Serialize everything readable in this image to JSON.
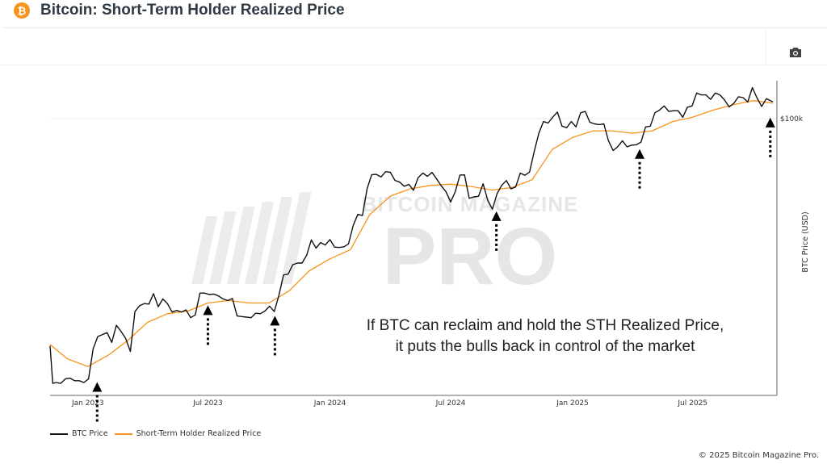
{
  "header": {
    "title": "Bitcoin: Short-Term Holder Realized Price",
    "logo_icon": "bitcoin-icon"
  },
  "toolbar": {
    "camera_icon": "camera-icon"
  },
  "footer": {
    "copyright": "© 2025 Bitcoin Magazine Pro."
  },
  "watermark": "BITCOIN MAGAZINE PRO",
  "colors": {
    "btc": "#111111",
    "sth": "#f7931a",
    "accent": "#f7931a"
  },
  "chart_data": {
    "type": "line",
    "title": "Bitcoin: Short-Term Holder Realized Price",
    "ylabel": "BTC Price (USD)",
    "yscale": "log",
    "ylim": [
      15200,
      139000
    ],
    "xlim": [
      "2022-11-05",
      "2025-11-05"
    ],
    "y_ticks": [
      {
        "value": 100000,
        "label": "$100k"
      }
    ],
    "x_ticks": [
      {
        "date": "2023-01-01",
        "label": "Jan 2023"
      },
      {
        "date": "2023-07-01",
        "label": "Jul 2023"
      },
      {
        "date": "2024-01-01",
        "label": "Jan 2024"
      },
      {
        "date": "2024-07-01",
        "label": "Jul 2024"
      },
      {
        "date": "2025-01-01",
        "label": "Jan 2025"
      },
      {
        "date": "2025-07-01",
        "label": "Jul 2025"
      }
    ],
    "grid": "y only",
    "legend_position": "bottom-left",
    "annotation": [
      "If BTC can reclaim and hold the STH Realized Price,",
      "it puts the bulls back in control of the market"
    ],
    "arrows": [
      {
        "date": "2023-01-15",
        "value": 17200
      },
      {
        "date": "2023-07-01",
        "value": 29000
      },
      {
        "date": "2023-10-10",
        "value": 27000
      },
      {
        "date": "2024-09-08",
        "value": 55000
      },
      {
        "date": "2025-04-12",
        "value": 84000
      },
      {
        "date": "2025-10-26",
        "value": 104000
      }
    ],
    "series": [
      {
        "name": "BTC Price",
        "color": "#111111",
        "points": [
          [
            "2022-11-05",
            21300
          ],
          [
            "2022-11-09",
            16500
          ],
          [
            "2022-11-14",
            16600
          ],
          [
            "2022-11-21",
            16500
          ],
          [
            "2022-11-28",
            17000
          ],
          [
            "2022-12-05",
            17100
          ],
          [
            "2022-12-12",
            16800
          ],
          [
            "2022-12-19",
            16800
          ],
          [
            "2022-12-26",
            16600
          ],
          [
            "2023-01-02",
            17000
          ],
          [
            "2023-01-09",
            20900
          ],
          [
            "2023-01-16",
            22700
          ],
          [
            "2023-01-23",
            23000
          ],
          [
            "2023-01-30",
            23300
          ],
          [
            "2023-02-06",
            21800
          ],
          [
            "2023-02-13",
            24500
          ],
          [
            "2023-02-20",
            23500
          ],
          [
            "2023-02-27",
            22400
          ],
          [
            "2023-03-06",
            20500
          ],
          [
            "2023-03-13",
            26900
          ],
          [
            "2023-03-20",
            28000
          ],
          [
            "2023-03-27",
            28400
          ],
          [
            "2023-04-03",
            28300
          ],
          [
            "2023-04-10",
            30400
          ],
          [
            "2023-04-17",
            27800
          ],
          [
            "2023-04-24",
            29300
          ],
          [
            "2023-05-01",
            28400
          ],
          [
            "2023-05-08",
            26800
          ],
          [
            "2023-05-15",
            27100
          ],
          [
            "2023-05-22",
            26800
          ],
          [
            "2023-05-29",
            27200
          ],
          [
            "2023-06-05",
            25800
          ],
          [
            "2023-06-12",
            26300
          ],
          [
            "2023-06-19",
            30500
          ],
          [
            "2023-06-26",
            30500
          ],
          [
            "2023-07-03",
            30200
          ],
          [
            "2023-07-10",
            30300
          ],
          [
            "2023-07-17",
            29900
          ],
          [
            "2023-07-24",
            29300
          ],
          [
            "2023-07-31",
            29000
          ],
          [
            "2023-08-07",
            29400
          ],
          [
            "2023-08-14",
            26100
          ],
          [
            "2023-08-21",
            26000
          ],
          [
            "2023-08-28",
            25900
          ],
          [
            "2023-09-04",
            25800
          ],
          [
            "2023-09-11",
            26600
          ],
          [
            "2023-09-18",
            26500
          ],
          [
            "2023-09-25",
            27000
          ],
          [
            "2023-10-02",
            27900
          ],
          [
            "2023-10-09",
            26900
          ],
          [
            "2023-10-16",
            30000
          ],
          [
            "2023-10-23",
            34500
          ],
          [
            "2023-10-30",
            34700
          ],
          [
            "2023-11-06",
            37000
          ],
          [
            "2023-11-13",
            37400
          ],
          [
            "2023-11-20",
            37400
          ],
          [
            "2023-11-27",
            39500
          ],
          [
            "2023-12-04",
            43800
          ],
          [
            "2023-12-11",
            41400
          ],
          [
            "2023-12-18",
            43000
          ],
          [
            "2023-12-25",
            42300
          ],
          [
            "2024-01-01",
            43900
          ],
          [
            "2024-01-08",
            41700
          ],
          [
            "2024-01-15",
            41600
          ],
          [
            "2024-01-22",
            41800
          ],
          [
            "2024-01-29",
            42600
          ],
          [
            "2024-02-05",
            48300
          ],
          [
            "2024-02-12",
            52100
          ],
          [
            "2024-02-19",
            51700
          ],
          [
            "2024-02-26",
            62000
          ],
          [
            "2024-03-04",
            68300
          ],
          [
            "2024-03-11",
            68400
          ],
          [
            "2024-03-18",
            67200
          ],
          [
            "2024-03-25",
            69700
          ],
          [
            "2024-04-01",
            69400
          ],
          [
            "2024-04-08",
            65700
          ],
          [
            "2024-04-15",
            64900
          ],
          [
            "2024-04-22",
            63100
          ],
          [
            "2024-04-29",
            63900
          ],
          [
            "2024-05-06",
            61400
          ],
          [
            "2024-05-13",
            66900
          ],
          [
            "2024-05-20",
            69000
          ],
          [
            "2024-05-27",
            67500
          ],
          [
            "2024-06-03",
            69300
          ],
          [
            "2024-06-10",
            66300
          ],
          [
            "2024-06-17",
            63200
          ],
          [
            "2024-06-24",
            60800
          ],
          [
            "2024-07-01",
            56700
          ],
          [
            "2024-07-08",
            60800
          ],
          [
            "2024-07-15",
            68100
          ],
          [
            "2024-07-22",
            68200
          ],
          [
            "2024-07-29",
            58100
          ],
          [
            "2024-08-05",
            58700
          ],
          [
            "2024-08-12",
            58900
          ],
          [
            "2024-08-19",
            64200
          ],
          [
            "2024-08-26",
            57300
          ],
          [
            "2024-09-02",
            54000
          ],
          [
            "2024-09-09",
            60000
          ],
          [
            "2024-09-16",
            63500
          ],
          [
            "2024-09-23",
            65600
          ],
          [
            "2024-09-30",
            62000
          ],
          [
            "2024-10-07",
            62800
          ],
          [
            "2024-10-14",
            69000
          ],
          [
            "2024-10-21",
            68000
          ],
          [
            "2024-10-28",
            69500
          ],
          [
            "2024-11-04",
            80000
          ],
          [
            "2024-11-11",
            90500
          ],
          [
            "2024-11-18",
            98000
          ],
          [
            "2024-11-25",
            97000
          ],
          [
            "2024-12-02",
            101000
          ],
          [
            "2024-12-09",
            104500
          ],
          [
            "2024-12-16",
            95000
          ],
          [
            "2024-12-23",
            94000
          ],
          [
            "2024-12-30",
            98000
          ],
          [
            "2025-01-06",
            94500
          ],
          [
            "2025-01-13",
            104000
          ],
          [
            "2025-01-20",
            105000
          ],
          [
            "2025-01-27",
            97500
          ],
          [
            "2025-02-03",
            96500
          ],
          [
            "2025-02-10",
            96000
          ],
          [
            "2025-02-17",
            96500
          ],
          [
            "2025-02-24",
            86000
          ],
          [
            "2025-03-03",
            80500
          ],
          [
            "2025-03-10",
            82600
          ],
          [
            "2025-03-17",
            86000
          ],
          [
            "2025-03-24",
            82500
          ],
          [
            "2025-03-31",
            83500
          ],
          [
            "2025-04-07",
            83700
          ],
          [
            "2025-04-14",
            85200
          ],
          [
            "2025-04-21",
            94500
          ],
          [
            "2025-04-28",
            95000
          ],
          [
            "2025-05-05",
            104000
          ],
          [
            "2025-05-12",
            106000
          ],
          [
            "2025-05-19",
            109000
          ],
          [
            "2025-05-26",
            105000
          ],
          [
            "2025-06-02",
            105500
          ],
          [
            "2025-06-09",
            105500
          ],
          [
            "2025-06-16",
            100900
          ],
          [
            "2025-06-23",
            108000
          ],
          [
            "2025-06-30",
            109000
          ],
          [
            "2025-07-07",
            119000
          ],
          [
            "2025-07-14",
            117500
          ],
          [
            "2025-07-21",
            117500
          ],
          [
            "2025-07-28",
            114000
          ],
          [
            "2025-08-04",
            119000
          ],
          [
            "2025-08-11",
            117500
          ],
          [
            "2025-08-18",
            113500
          ],
          [
            "2025-08-25",
            108200
          ],
          [
            "2025-09-01",
            111000
          ],
          [
            "2025-09-08",
            116000
          ],
          [
            "2025-09-15",
            115300
          ],
          [
            "2025-09-22",
            112000
          ],
          [
            "2025-09-29",
            123500
          ],
          [
            "2025-10-06",
            115000
          ],
          [
            "2025-10-13",
            108600
          ],
          [
            "2025-10-20",
            114500
          ],
          [
            "2025-10-30",
            112000
          ]
        ]
      },
      {
        "name": "Short-Term Holder Realized Price",
        "color": "#f7931a",
        "points": [
          [
            "2022-11-05",
            21500
          ],
          [
            "2022-12-01",
            19500
          ],
          [
            "2023-01-01",
            18500
          ],
          [
            "2023-02-01",
            20000
          ],
          [
            "2023-03-01",
            22000
          ],
          [
            "2023-04-01",
            25000
          ],
          [
            "2023-05-01",
            26500
          ],
          [
            "2023-06-01",
            27000
          ],
          [
            "2023-07-01",
            28500
          ],
          [
            "2023-08-01",
            29000
          ],
          [
            "2023-09-01",
            28500
          ],
          [
            "2023-10-01",
            28500
          ],
          [
            "2023-11-01",
            31000
          ],
          [
            "2023-12-01",
            35500
          ],
          [
            "2024-01-01",
            38500
          ],
          [
            "2024-02-01",
            41000
          ],
          [
            "2024-03-01",
            52000
          ],
          [
            "2024-04-01",
            59000
          ],
          [
            "2024-05-01",
            62000
          ],
          [
            "2024-06-01",
            63500
          ],
          [
            "2024-07-01",
            64000
          ],
          [
            "2024-08-01",
            63000
          ],
          [
            "2024-09-01",
            61500
          ],
          [
            "2024-10-01",
            62500
          ],
          [
            "2024-11-01",
            66000
          ],
          [
            "2024-12-01",
            81000
          ],
          [
            "2025-01-01",
            88000
          ],
          [
            "2025-02-01",
            92000
          ],
          [
            "2025-03-01",
            92000
          ],
          [
            "2025-04-01",
            90500
          ],
          [
            "2025-05-01",
            92000
          ],
          [
            "2025-06-01",
            98000
          ],
          [
            "2025-07-01",
            101000
          ],
          [
            "2025-08-01",
            106000
          ],
          [
            "2025-09-01",
            110000
          ],
          [
            "2025-10-01",
            113000
          ],
          [
            "2025-10-30",
            111000
          ]
        ]
      }
    ]
  }
}
